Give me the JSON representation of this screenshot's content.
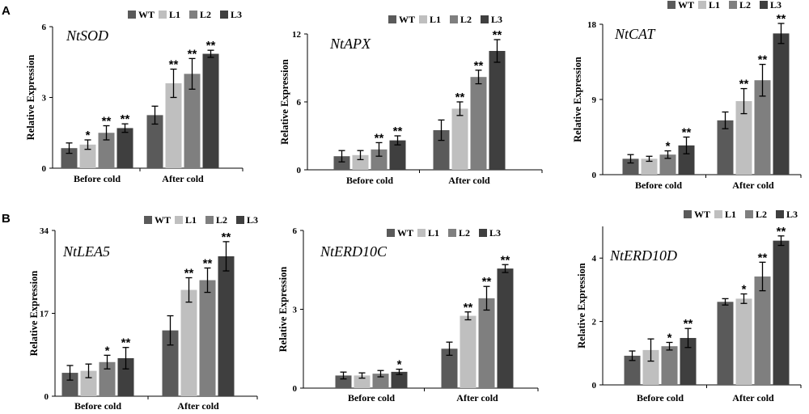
{
  "figure": {
    "panel_labels": [
      "A",
      "B"
    ]
  },
  "chart_data": [
    {
      "type": "bar",
      "title": "NtSOD",
      "ylabel": "Relative Expression",
      "xlabel": "",
      "ylim": [
        0,
        6
      ],
      "yticks": [
        0,
        3,
        6
      ],
      "grid": false,
      "legend_position": "top",
      "categories": [
        "Before cold",
        "After cold"
      ],
      "series": [
        {
          "name": "WT",
          "color": "#5a5a5a",
          "values": [
            0.85,
            2.25
          ],
          "errors": [
            0.22,
            0.38
          ],
          "significance": [
            "",
            ""
          ]
        },
        {
          "name": "L1",
          "color": "#bfbfbf",
          "values": [
            1.0,
            3.6
          ],
          "errors": [
            0.2,
            0.6
          ],
          "significance": [
            "*",
            "**"
          ]
        },
        {
          "name": "L2",
          "color": "#7f7f7f",
          "values": [
            1.5,
            4.0
          ],
          "errors": [
            0.3,
            0.65
          ],
          "significance": [
            "**",
            "**"
          ]
        },
        {
          "name": "L3",
          "color": "#3f3f3f",
          "values": [
            1.7,
            4.85
          ],
          "errors": [
            0.18,
            0.15
          ],
          "significance": [
            "**",
            "**"
          ]
        }
      ]
    },
    {
      "type": "bar",
      "title": "NtAPX",
      "ylabel": "Relative Expression",
      "xlabel": "",
      "ylim": [
        0,
        12
      ],
      "yticks": [
        0,
        6,
        12
      ],
      "grid": false,
      "legend_position": "top",
      "categories": [
        "Before cold",
        "After cold"
      ],
      "series": [
        {
          "name": "WT",
          "color": "#5a5a5a",
          "values": [
            1.2,
            3.5
          ],
          "errors": [
            0.5,
            0.9
          ],
          "significance": [
            "",
            ""
          ]
        },
        {
          "name": "L1",
          "color": "#bfbfbf",
          "values": [
            1.3,
            5.4
          ],
          "errors": [
            0.4,
            0.6
          ],
          "significance": [
            "",
            "**"
          ]
        },
        {
          "name": "L2",
          "color": "#7f7f7f",
          "values": [
            1.8,
            8.2
          ],
          "errors": [
            0.6,
            0.6
          ],
          "significance": [
            "**",
            "**"
          ]
        },
        {
          "name": "L3",
          "color": "#3f3f3f",
          "values": [
            2.6,
            10.5
          ],
          "errors": [
            0.4,
            1.0
          ],
          "significance": [
            "**",
            "**"
          ]
        }
      ]
    },
    {
      "type": "bar",
      "title": "NtCAT",
      "ylabel": "Relative Expression",
      "xlabel": "",
      "ylim": [
        0,
        18
      ],
      "yticks": [
        0,
        9,
        18
      ],
      "grid": false,
      "legend_position": "top",
      "categories": [
        "Before cold",
        "After cold"
      ],
      "series": [
        {
          "name": "WT",
          "color": "#5a5a5a",
          "values": [
            1.9,
            6.5
          ],
          "errors": [
            0.5,
            1.0
          ],
          "significance": [
            "",
            ""
          ]
        },
        {
          "name": "L1",
          "color": "#bfbfbf",
          "values": [
            1.9,
            8.8
          ],
          "errors": [
            0.3,
            1.5
          ],
          "significance": [
            "",
            "**"
          ]
        },
        {
          "name": "L2",
          "color": "#7f7f7f",
          "values": [
            2.4,
            11.3
          ],
          "errors": [
            0.45,
            1.9
          ],
          "significance": [
            "*",
            "**"
          ]
        },
        {
          "name": "L3",
          "color": "#3f3f3f",
          "values": [
            3.5,
            16.9
          ],
          "errors": [
            1.0,
            1.2
          ],
          "significance": [
            "**",
            "**"
          ]
        }
      ]
    },
    {
      "type": "bar",
      "title": "NtLEA5",
      "ylabel": "Relative Expression",
      "xlabel": "",
      "ylim": [
        0,
        34
      ],
      "yticks": [
        0,
        17,
        34
      ],
      "grid": false,
      "legend_position": "top",
      "categories": [
        "Before cold",
        "After cold"
      ],
      "series": [
        {
          "name": "WT",
          "color": "#5a5a5a",
          "values": [
            4.8,
            13.5
          ],
          "errors": [
            1.5,
            3.0
          ],
          "significance": [
            "",
            ""
          ]
        },
        {
          "name": "L1",
          "color": "#bfbfbf",
          "values": [
            5.2,
            21.8
          ],
          "errors": [
            1.4,
            2.5
          ],
          "significance": [
            "",
            "**"
          ]
        },
        {
          "name": "L2",
          "color": "#7f7f7f",
          "values": [
            7.0,
            23.8
          ],
          "errors": [
            1.4,
            2.5
          ],
          "significance": [
            "*",
            "**"
          ]
        },
        {
          "name": "L3",
          "color": "#3f3f3f",
          "values": [
            7.8,
            28.7
          ],
          "errors": [
            2.2,
            3.0
          ],
          "significance": [
            "**",
            "**"
          ]
        }
      ]
    },
    {
      "type": "bar",
      "title": "NtERD10C",
      "ylabel": "Relative Expression",
      "xlabel": "",
      "ylim": [
        0,
        6
      ],
      "yticks": [
        0,
        3,
        6
      ],
      "grid": false,
      "legend_position": "top",
      "categories": [
        "Before cold",
        "After cold"
      ],
      "series": [
        {
          "name": "WT",
          "color": "#5a5a5a",
          "values": [
            0.48,
            1.5
          ],
          "errors": [
            0.13,
            0.25
          ],
          "significance": [
            "",
            ""
          ]
        },
        {
          "name": "L1",
          "color": "#bfbfbf",
          "values": [
            0.48,
            2.75
          ],
          "errors": [
            0.1,
            0.15
          ],
          "significance": [
            "",
            "**"
          ]
        },
        {
          "name": "L2",
          "color": "#7f7f7f",
          "values": [
            0.55,
            3.42
          ],
          "errors": [
            0.12,
            0.45
          ],
          "significance": [
            "",
            "**"
          ]
        },
        {
          "name": "L3",
          "color": "#3f3f3f",
          "values": [
            0.62,
            4.55
          ],
          "errors": [
            0.1,
            0.15
          ],
          "significance": [
            "*",
            "**"
          ]
        }
      ]
    },
    {
      "type": "bar",
      "title": "NtERD10D",
      "ylabel": "Relative Expression",
      "xlabel": "",
      "ylim": [
        0,
        5
      ],
      "yticks": [
        0,
        2,
        4
      ],
      "grid": false,
      "legend_position": "top",
      "categories": [
        "Before cold",
        "After cold"
      ],
      "series": [
        {
          "name": "WT",
          "color": "#5a5a5a",
          "values": [
            0.92,
            2.62
          ],
          "errors": [
            0.15,
            0.1
          ],
          "significance": [
            "",
            ""
          ]
        },
        {
          "name": "L1",
          "color": "#bfbfbf",
          "values": [
            1.1,
            2.72
          ],
          "errors": [
            0.35,
            0.15
          ],
          "significance": [
            "",
            "*"
          ]
        },
        {
          "name": "L2",
          "color": "#7f7f7f",
          "values": [
            1.22,
            3.42
          ],
          "errors": [
            0.12,
            0.45
          ],
          "significance": [
            "*",
            "**"
          ]
        },
        {
          "name": "L3",
          "color": "#3f3f3f",
          "values": [
            1.48,
            4.55
          ],
          "errors": [
            0.3,
            0.15
          ],
          "significance": [
            "**",
            "**"
          ]
        }
      ]
    }
  ]
}
